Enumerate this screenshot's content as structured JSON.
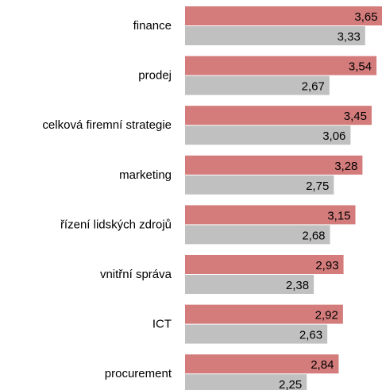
{
  "chart_data": {
    "type": "barh",
    "categories": [
      "finance",
      "prodej",
      "celková firemní strategie",
      "marketing",
      "řízení lidských zdrojů",
      "vnitřní správa",
      "ICT",
      "procurement"
    ],
    "series": [
      {
        "color": "#d47b7b",
        "values": [
          3.65,
          3.54,
          3.45,
          3.28,
          3.15,
          2.93,
          2.92,
          2.84
        ],
        "value_labels": [
          "3,65",
          "3,54",
          "3,45",
          "3,28",
          "3,15",
          "2,93",
          "2,92",
          "2,84"
        ]
      },
      {
        "color": "#c0c0c0",
        "values": [
          3.33,
          2.67,
          3.06,
          2.75,
          2.68,
          2.38,
          2.63,
          2.25
        ],
        "value_labels": [
          "3,33",
          "2,67",
          "3,06",
          "2,75",
          "2,68",
          "2,38",
          "2,63",
          "2,25"
        ]
      }
    ],
    "xlim": [
      0,
      3.7
    ]
  }
}
